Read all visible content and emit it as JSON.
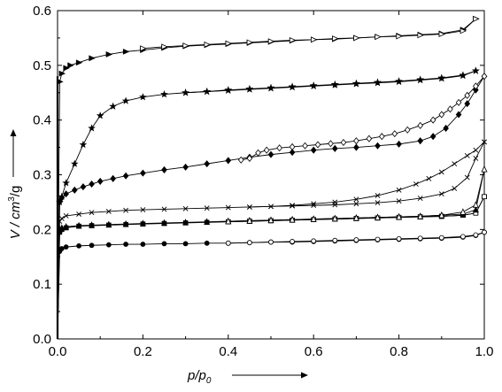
{
  "chart_data": {
    "type": "line",
    "title": "",
    "xlabel": {
      "main": "p/p",
      "sub": "0"
    },
    "ylabel": {
      "pre": "V / cm",
      "sup": "3",
      "post": "/g"
    },
    "xlim": [
      0,
      1.0
    ],
    "ylim": [
      0,
      0.6
    ],
    "xticks": [
      0,
      0.2,
      0.4,
      0.6,
      0.8,
      1.0
    ],
    "xtick_labels": [
      "0.0",
      "0.2",
      "0.4",
      "0.6",
      "0.8",
      "1.0"
    ],
    "yticks": [
      0,
      0.1,
      0.2,
      0.3,
      0.4,
      0.5,
      0.6
    ],
    "ytick_labels": [
      "0.0",
      "0.1",
      "0.2",
      "0.3",
      "0.4",
      "0.5",
      "0.6"
    ],
    "grid": false,
    "legend": "none",
    "series": [
      {
        "marker": "triangle-right",
        "adsorption": {
          "x": [
            0.0,
            0.005,
            0.01,
            0.02,
            0.03,
            0.05,
            0.08,
            0.12,
            0.16,
            0.2,
            0.25,
            0.3,
            0.35,
            0.4,
            0.45,
            0.5,
            0.55,
            0.6,
            0.65,
            0.7,
            0.75,
            0.8,
            0.85,
            0.9,
            0.95,
            0.98
          ],
          "y": [
            0.0,
            0.47,
            0.485,
            0.495,
            0.5,
            0.505,
            0.513,
            0.52,
            0.525,
            0.528,
            0.532,
            0.535,
            0.537,
            0.539,
            0.541,
            0.543,
            0.545,
            0.547,
            0.548,
            0.55,
            0.552,
            0.554,
            0.556,
            0.558,
            0.565,
            0.585
          ]
        },
        "desorption": {
          "x": [
            0.98,
            0.95,
            0.9,
            0.85,
            0.8,
            0.75,
            0.7,
            0.65,
            0.6,
            0.55,
            0.5,
            0.45,
            0.4,
            0.35,
            0.3,
            0.25,
            0.2
          ],
          "y": [
            0.585,
            0.563,
            0.557,
            0.555,
            0.553,
            0.552,
            0.55,
            0.549,
            0.547,
            0.546,
            0.544,
            0.542,
            0.54,
            0.538,
            0.536,
            0.534,
            0.531
          ]
        }
      },
      {
        "marker": "star",
        "adsorption": {
          "x": [
            0.0,
            0.005,
            0.01,
            0.02,
            0.04,
            0.06,
            0.08,
            0.1,
            0.13,
            0.16,
            0.2,
            0.25,
            0.3,
            0.35,
            0.4,
            0.45,
            0.5,
            0.55,
            0.6,
            0.65,
            0.7,
            0.75,
            0.8,
            0.85,
            0.9,
            0.95,
            0.98
          ],
          "y": [
            0.0,
            0.25,
            0.26,
            0.285,
            0.32,
            0.355,
            0.385,
            0.408,
            0.425,
            0.435,
            0.442,
            0.447,
            0.45,
            0.452,
            0.455,
            0.457,
            0.459,
            0.461,
            0.463,
            0.465,
            0.467,
            0.469,
            0.471,
            0.474,
            0.477,
            0.482,
            0.49
          ]
        },
        "desorption": {
          "x": [
            0.98,
            0.95,
            0.9,
            0.85,
            0.8,
            0.75,
            0.7,
            0.65,
            0.6,
            0.55,
            0.5,
            0.45,
            0.4,
            0.35,
            0.3
          ],
          "y": [
            0.49,
            0.481,
            0.476,
            0.473,
            0.47,
            0.468,
            0.466,
            0.464,
            0.462,
            0.46,
            0.458,
            0.456,
            0.454,
            0.452,
            0.45
          ]
        }
      },
      {
        "marker": "diamond",
        "adsorption": {
          "x": [
            0.0,
            0.005,
            0.01,
            0.02,
            0.04,
            0.06,
            0.08,
            0.1,
            0.13,
            0.16,
            0.2,
            0.25,
            0.3,
            0.35,
            0.4,
            0.45,
            0.5,
            0.55,
            0.6,
            0.65,
            0.7,
            0.75,
            0.8,
            0.85,
            0.88,
            0.91,
            0.94,
            0.96,
            0.98,
            1.0
          ],
          "y": [
            0.0,
            0.25,
            0.258,
            0.265,
            0.272,
            0.278,
            0.283,
            0.288,
            0.293,
            0.298,
            0.303,
            0.309,
            0.314,
            0.32,
            0.326,
            0.332,
            0.337,
            0.341,
            0.345,
            0.348,
            0.35,
            0.353,
            0.356,
            0.362,
            0.37,
            0.385,
            0.41,
            0.43,
            0.455,
            0.48
          ]
        },
        "desorption": {
          "x": [
            1.0,
            0.98,
            0.96,
            0.94,
            0.92,
            0.9,
            0.88,
            0.85,
            0.82,
            0.79,
            0.76,
            0.73,
            0.7,
            0.67,
            0.64,
            0.61,
            0.58,
            0.55,
            0.52,
            0.49,
            0.47,
            0.45,
            0.43
          ],
          "y": [
            0.48,
            0.462,
            0.445,
            0.432,
            0.42,
            0.41,
            0.4,
            0.39,
            0.382,
            0.375,
            0.37,
            0.366,
            0.362,
            0.359,
            0.357,
            0.355,
            0.353,
            0.351,
            0.349,
            0.345,
            0.34,
            0.33,
            0.327
          ]
        }
      },
      {
        "marker": "x",
        "adsorption": {
          "x": [
            0.0,
            0.005,
            0.01,
            0.02,
            0.05,
            0.08,
            0.12,
            0.16,
            0.2,
            0.25,
            0.3,
            0.35,
            0.4,
            0.45,
            0.5,
            0.55,
            0.6,
            0.65,
            0.7,
            0.75,
            0.8,
            0.85,
            0.9,
            0.93,
            0.96,
            0.98,
            1.0
          ],
          "y": [
            0.0,
            0.215,
            0.22,
            0.225,
            0.228,
            0.231,
            0.233,
            0.235,
            0.236,
            0.237,
            0.238,
            0.239,
            0.24,
            0.241,
            0.242,
            0.243,
            0.244,
            0.245,
            0.247,
            0.249,
            0.252,
            0.257,
            0.265,
            0.275,
            0.295,
            0.33,
            0.36
          ]
        },
        "desorption": {
          "x": [
            1.0,
            0.98,
            0.96,
            0.93,
            0.9,
            0.87,
            0.84,
            0.8,
            0.75,
            0.7,
            0.65,
            0.6,
            0.55,
            0.5,
            0.45
          ],
          "y": [
            0.36,
            0.345,
            0.335,
            0.32,
            0.305,
            0.293,
            0.283,
            0.272,
            0.262,
            0.255,
            0.25,
            0.247,
            0.244,
            0.242,
            0.241
          ]
        }
      },
      {
        "marker": "square",
        "adsorption": {
          "x": [
            0.0,
            0.005,
            0.01,
            0.02,
            0.05,
            0.08,
            0.12,
            0.16,
            0.2,
            0.25,
            0.3,
            0.35,
            0.4,
            0.45,
            0.5,
            0.55,
            0.6,
            0.65,
            0.7,
            0.75,
            0.8,
            0.85,
            0.9,
            0.95,
            0.98,
            1.0
          ],
          "y": [
            0.0,
            0.195,
            0.2,
            0.203,
            0.206,
            0.207,
            0.208,
            0.209,
            0.21,
            0.211,
            0.212,
            0.213,
            0.214,
            0.215,
            0.216,
            0.217,
            0.218,
            0.219,
            0.22,
            0.221,
            0.222,
            0.223,
            0.224,
            0.226,
            0.23,
            0.26
          ]
        },
        "desorption": {
          "x": [
            1.0,
            0.98,
            0.95,
            0.9,
            0.85,
            0.8,
            0.75,
            0.7,
            0.65,
            0.6,
            0.55,
            0.5,
            0.45,
            0.4
          ],
          "y": [
            0.26,
            0.23,
            0.226,
            0.224,
            0.223,
            0.222,
            0.221,
            0.22,
            0.219,
            0.218,
            0.217,
            0.216,
            0.215,
            0.214
          ]
        }
      },
      {
        "marker": "triangle-up",
        "adsorption": {
          "x": [
            0.0,
            0.005,
            0.01,
            0.02,
            0.05,
            0.08,
            0.12,
            0.16,
            0.2,
            0.25,
            0.3,
            0.35,
            0.4,
            0.45,
            0.5,
            0.55,
            0.6,
            0.65,
            0.7,
            0.75,
            0.8,
            0.85,
            0.9,
            0.95,
            0.98,
            1.0
          ],
          "y": [
            0.0,
            0.2,
            0.203,
            0.205,
            0.207,
            0.208,
            0.209,
            0.21,
            0.211,
            0.212,
            0.213,
            0.214,
            0.215,
            0.216,
            0.217,
            0.218,
            0.219,
            0.22,
            0.221,
            0.222,
            0.223,
            0.224,
            0.226,
            0.228,
            0.236,
            0.31
          ]
        },
        "desorption": {
          "x": [
            1.0,
            0.98,
            0.95,
            0.9,
            0.85,
            0.8,
            0.75,
            0.7,
            0.65,
            0.6,
            0.55,
            0.5,
            0.45,
            0.4
          ],
          "y": [
            0.31,
            0.245,
            0.232,
            0.226,
            0.224,
            0.223,
            0.222,
            0.221,
            0.22,
            0.219,
            0.218,
            0.217,
            0.216,
            0.215
          ]
        }
      },
      {
        "marker": "circle",
        "adsorption": {
          "x": [
            0.0,
            0.005,
            0.01,
            0.02,
            0.05,
            0.08,
            0.12,
            0.16,
            0.2,
            0.25,
            0.3,
            0.35,
            0.4,
            0.45,
            0.5,
            0.55,
            0.6,
            0.65,
            0.7,
            0.75,
            0.8,
            0.85,
            0.9,
            0.95,
            0.98,
            1.0
          ],
          "y": [
            0.0,
            0.16,
            0.165,
            0.168,
            0.17,
            0.171,
            0.172,
            0.173,
            0.173,
            0.174,
            0.174,
            0.175,
            0.175,
            0.176,
            0.177,
            0.177,
            0.178,
            0.179,
            0.18,
            0.181,
            0.182,
            0.183,
            0.184,
            0.186,
            0.189,
            0.195
          ]
        },
        "desorption": {
          "x": [
            1.0,
            0.98,
            0.95,
            0.9,
            0.85,
            0.8,
            0.75,
            0.7,
            0.65,
            0.6,
            0.55,
            0.5,
            0.45,
            0.4
          ],
          "y": [
            0.195,
            0.19,
            0.187,
            0.185,
            0.184,
            0.183,
            0.182,
            0.181,
            0.18,
            0.179,
            0.178,
            0.177,
            0.176,
            0.175
          ]
        }
      }
    ]
  }
}
